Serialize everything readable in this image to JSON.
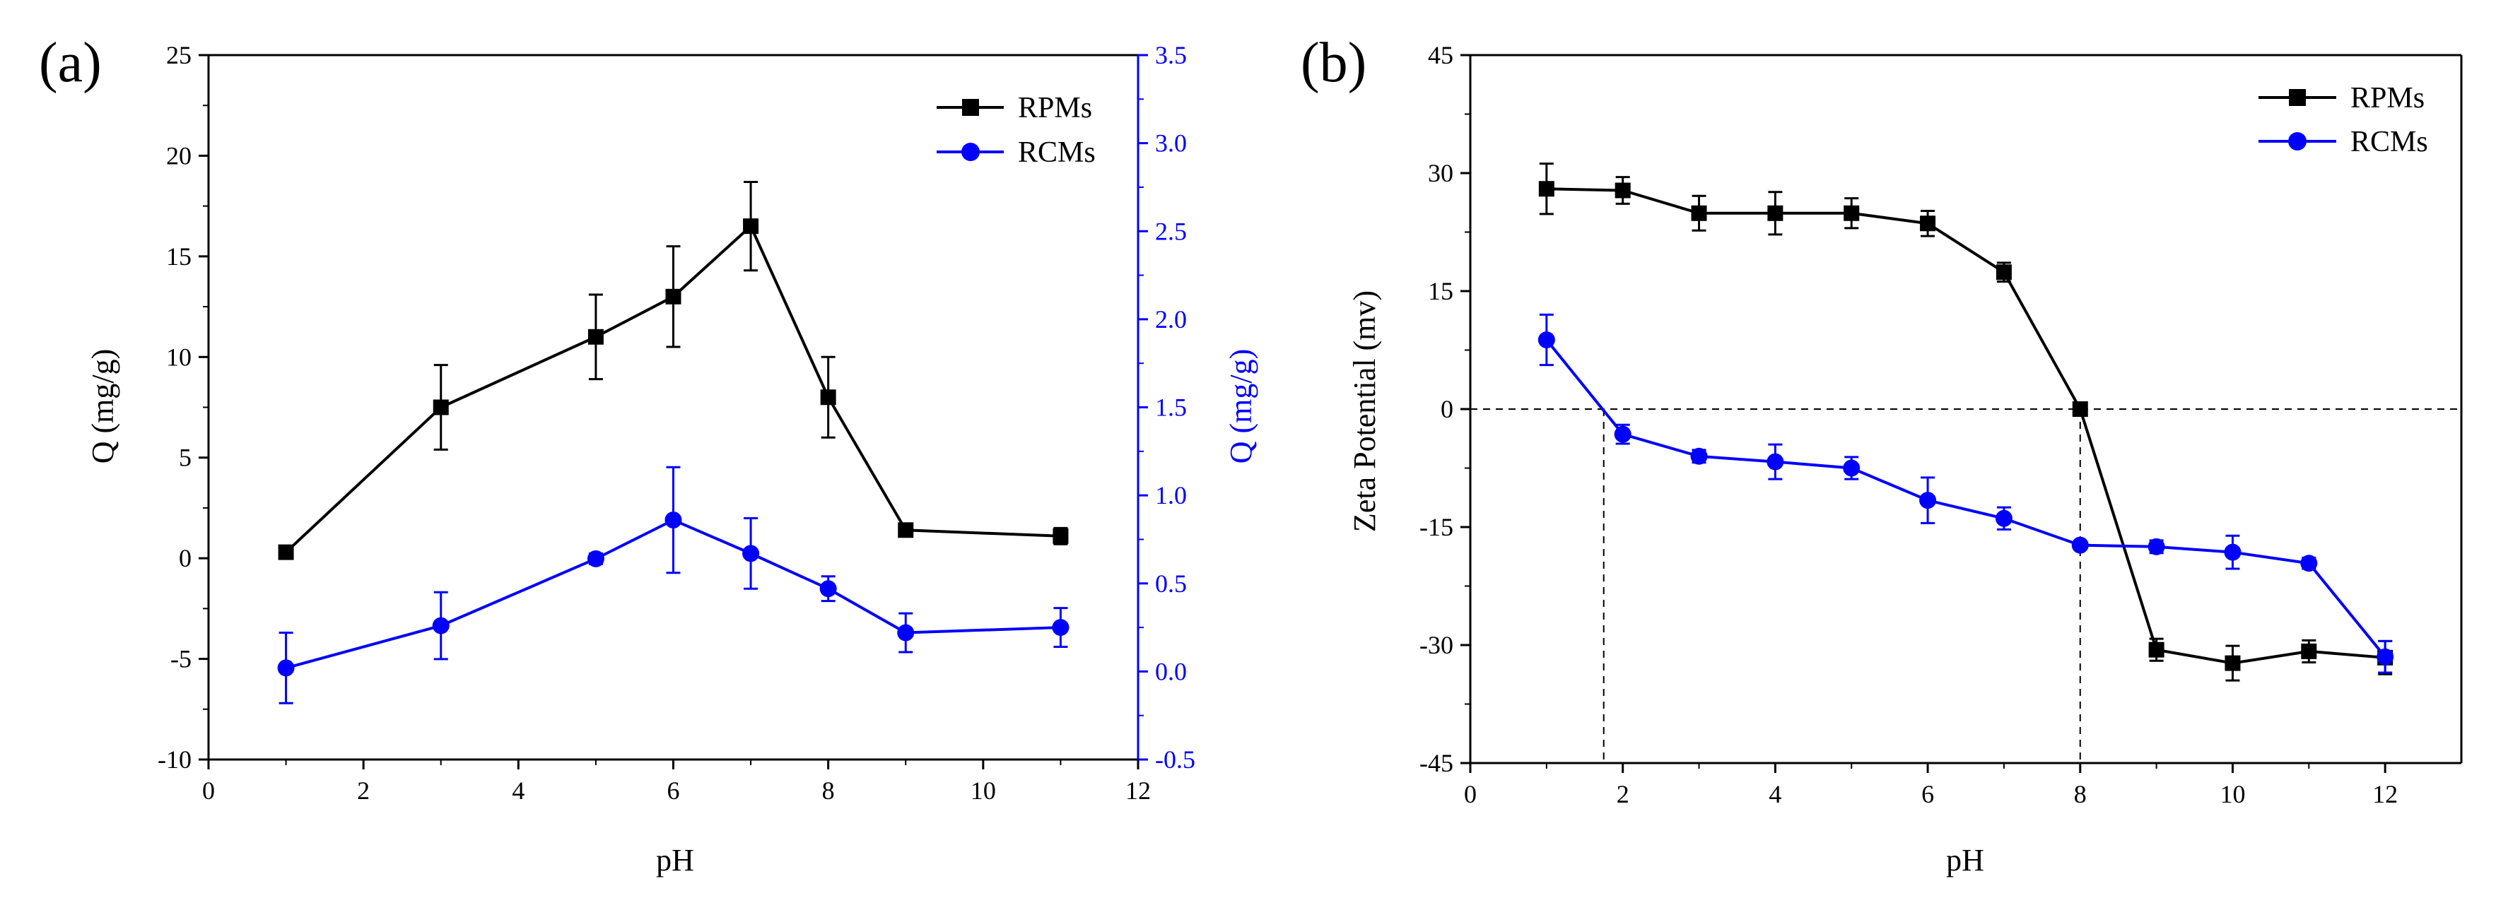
{
  "chart_data": [
    {
      "type": "line",
      "panel_label": "(a)",
      "xlabel": "pH",
      "ylabel": "Q (mg/g)",
      "y2label": "Q (mg/g)",
      "xlim": [
        0,
        12
      ],
      "ylim": [
        -10,
        25
      ],
      "y2lim": [
        -0.5,
        3.5
      ],
      "xticks": [
        0,
        2,
        4,
        6,
        8,
        10,
        12
      ],
      "yticks": [
        -10,
        -5,
        0,
        5,
        10,
        15,
        20,
        25
      ],
      "y2ticks": [
        -0.5,
        0.0,
        0.5,
        1.0,
        1.5,
        2.0,
        2.5,
        3.0,
        3.5
      ],
      "y2tick_labels": [
        "-0.5",
        "0.0",
        "0.5",
        "1.0",
        "1.5",
        "2.0",
        "2.5",
        "3.0",
        "3.5"
      ],
      "axis_colors": {
        "left": "#000000",
        "right": "#0000ff"
      },
      "legend_position": "top-right",
      "series": [
        {
          "name": "RPMs",
          "color": "#000000",
          "marker": "square",
          "axis": "left",
          "x": [
            1,
            3,
            5,
            6,
            7,
            8,
            9,
            11
          ],
          "y": [
            0.3,
            7.5,
            11.0,
            13.0,
            16.5,
            8.0,
            1.4,
            1.1
          ],
          "err": [
            0.3,
            2.1,
            2.1,
            2.5,
            2.2,
            2.0,
            0.2,
            0.4
          ]
        },
        {
          "name": "RCMs",
          "color": "#0000ff",
          "marker": "circle",
          "axis": "right",
          "x": [
            1,
            3,
            5,
            6,
            7,
            8,
            9,
            11
          ],
          "y": [
            0.02,
            0.26,
            0.64,
            0.86,
            0.67,
            0.47,
            0.22,
            0.25
          ],
          "err": [
            0.2,
            0.19,
            0.03,
            0.3,
            0.2,
            0.07,
            0.11,
            0.11
          ]
        }
      ]
    },
    {
      "type": "line",
      "panel_label": "(b)",
      "xlabel": "pH",
      "ylabel": "Zeta Potential (mv)",
      "xlim": [
        0,
        13
      ],
      "ylim": [
        -45,
        45
      ],
      "xticks": [
        0,
        2,
        4,
        6,
        8,
        10,
        12
      ],
      "yticks": [
        -45,
        -30,
        -15,
        0,
        15,
        30,
        45
      ],
      "legend_position": "top-right",
      "reference_lines": {
        "y_zero_dashed": 0,
        "x_dashed": [
          1.75,
          8.0
        ]
      },
      "series": [
        {
          "name": "RPMs",
          "color": "#000000",
          "marker": "square",
          "x": [
            1,
            2,
            3,
            4,
            5,
            6,
            7,
            8,
            9,
            10,
            11,
            12
          ],
          "y": [
            28.0,
            27.8,
            24.9,
            24.9,
            24.9,
            23.6,
            17.4,
            0.0,
            -30.6,
            -32.3,
            -30.8,
            -31.6
          ],
          "err": [
            3.2,
            1.7,
            2.2,
            2.7,
            1.9,
            1.6,
            1.2,
            0.0,
            1.4,
            2.2,
            1.4,
            2.1
          ]
        },
        {
          "name": "RCMs",
          "color": "#0000ff",
          "marker": "circle",
          "x": [
            1,
            2,
            3,
            4,
            5,
            6,
            7,
            8,
            9,
            10,
            11,
            12
          ],
          "y": [
            8.8,
            -3.2,
            -6.0,
            -6.7,
            -7.5,
            -11.6,
            -13.9,
            -17.3,
            -17.5,
            -18.2,
            -19.6,
            -31.5
          ],
          "err": [
            3.2,
            1.2,
            0.8,
            2.2,
            1.4,
            2.9,
            1.4,
            0.0,
            0.8,
            2.1,
            0.7,
            2.0
          ]
        }
      ]
    }
  ]
}
